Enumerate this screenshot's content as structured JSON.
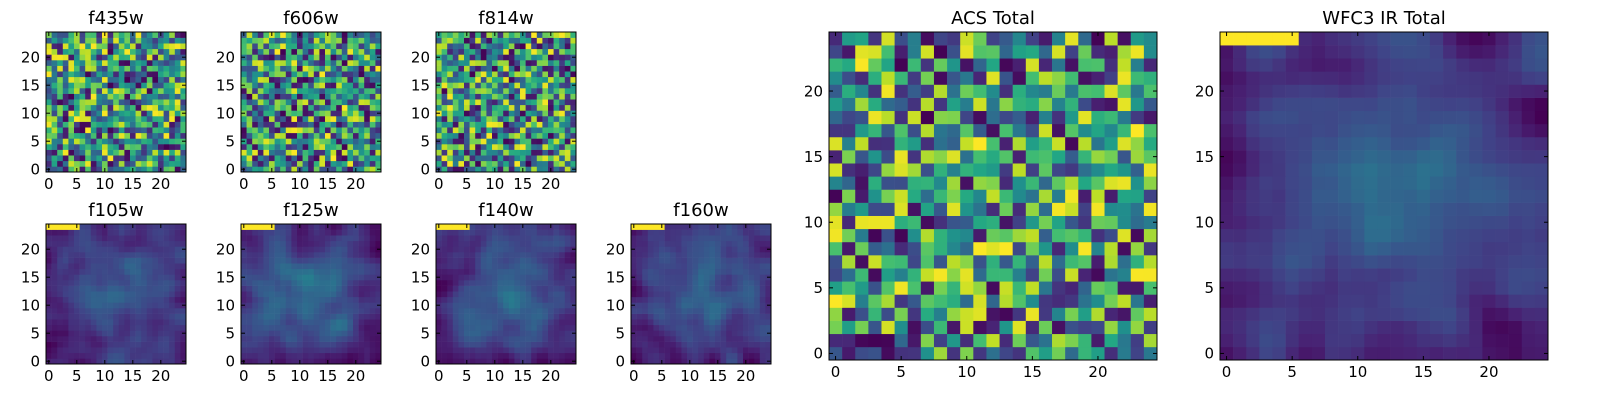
{
  "chart_data": [
    {
      "type": "heatmap",
      "title": "f435w",
      "size": 25,
      "seed": 11,
      "style": "noisy",
      "xticks": [
        0,
        5,
        10,
        15,
        20
      ],
      "yticks": [
        0,
        5,
        10,
        15,
        20
      ],
      "xlim": [
        -0.5,
        24.5
      ],
      "ylim": [
        -0.5,
        24.5
      ],
      "colormap": "viridis"
    },
    {
      "type": "heatmap",
      "title": "f606w",
      "size": 25,
      "seed": 23,
      "style": "noisy",
      "xticks": [
        0,
        5,
        10,
        15,
        20
      ],
      "yticks": [
        0,
        5,
        10,
        15,
        20
      ],
      "xlim": [
        -0.5,
        24.5
      ],
      "ylim": [
        -0.5,
        24.5
      ],
      "colormap": "viridis"
    },
    {
      "type": "heatmap",
      "title": "f814w",
      "size": 25,
      "seed": 37,
      "style": "noisy",
      "xticks": [
        0,
        5,
        10,
        15,
        20
      ],
      "yticks": [
        0,
        5,
        10,
        15,
        20
      ],
      "xlim": [
        -0.5,
        24.5
      ],
      "ylim": [
        -0.5,
        24.5
      ],
      "colormap": "viridis"
    },
    {
      "type": "heatmap",
      "title": "f105w",
      "size": 25,
      "seed": 41,
      "style": "smooth",
      "xticks": [
        0,
        5,
        10,
        15,
        20
      ],
      "yticks": [
        0,
        5,
        10,
        15,
        20
      ],
      "xlim": [
        -0.5,
        24.5
      ],
      "ylim": [
        -0.5,
        24.5
      ],
      "colormap": "viridis"
    },
    {
      "type": "heatmap",
      "title": "f125w",
      "size": 25,
      "seed": 53,
      "style": "smooth",
      "xticks": [
        0,
        5,
        10,
        15,
        20
      ],
      "yticks": [
        0,
        5,
        10,
        15,
        20
      ],
      "xlim": [
        -0.5,
        24.5
      ],
      "ylim": [
        -0.5,
        24.5
      ],
      "colormap": "viridis"
    },
    {
      "type": "heatmap",
      "title": "f140w",
      "size": 25,
      "seed": 67,
      "style": "smooth",
      "xticks": [
        0,
        5,
        10,
        15,
        20
      ],
      "yticks": [
        0,
        5,
        10,
        15,
        20
      ],
      "xlim": [
        -0.5,
        24.5
      ],
      "ylim": [
        -0.5,
        24.5
      ],
      "colormap": "viridis"
    },
    {
      "type": "heatmap",
      "title": "f160w",
      "size": 25,
      "seed": 79,
      "style": "smooth",
      "xticks": [
        0,
        5,
        10,
        15,
        20
      ],
      "yticks": [
        0,
        5,
        10,
        15,
        20
      ],
      "xlim": [
        -0.5,
        24.5
      ],
      "ylim": [
        -0.5,
        24.5
      ],
      "colormap": "viridis"
    },
    {
      "type": "heatmap",
      "title": "ACS Total",
      "size": 25,
      "seed": 97,
      "style": "noisy",
      "xticks": [
        0,
        5,
        10,
        15,
        20
      ],
      "yticks": [
        0,
        5,
        10,
        15,
        20
      ],
      "xlim": [
        -0.5,
        24.5
      ],
      "ylim": [
        -0.5,
        24.5
      ],
      "colormap": "viridis"
    },
    {
      "type": "heatmap",
      "title": "WFC3 IR Total",
      "size": 25,
      "seed": 113,
      "style": "smooth",
      "xticks": [
        0,
        5,
        10,
        15,
        20
      ],
      "yticks": [
        0,
        5,
        10,
        15,
        20
      ],
      "xlim": [
        -0.5,
        24.5
      ],
      "ylim": [
        -0.5,
        24.5
      ],
      "colormap": "viridis"
    }
  ]
}
